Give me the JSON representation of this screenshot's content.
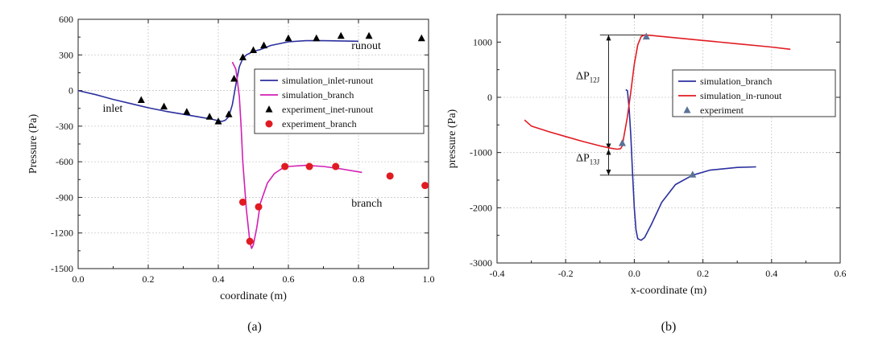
{
  "chart_data": [
    {
      "type": "line",
      "panel_label": "(a)",
      "xlabel": "coordinate (m)",
      "ylabel": "Pressure (Pa)",
      "xlim": [
        0.0,
        1.0
      ],
      "ylim": [
        -1500,
        600
      ],
      "x_ticks": [
        0.0,
        0.2,
        0.4,
        0.6,
        0.8,
        1.0
      ],
      "x_tick_labels": [
        "0.0",
        "0.2",
        "0.4",
        "0.6",
        "0.8",
        "1.0"
      ],
      "y_ticks": [
        -1500,
        -1200,
        -900,
        -600,
        -300,
        0,
        300,
        600
      ],
      "y_tick_labels": [
        "-1500",
        "-1200",
        "-900",
        "-600",
        "-300",
        "0",
        "300",
        "600"
      ],
      "grid": true,
      "legend_position": "right",
      "annotations": [
        {
          "text": "inlet",
          "x": 0.07,
          "y": -180
        },
        {
          "text": "runout",
          "x": 0.78,
          "y": 350
        },
        {
          "text": "branch",
          "x": 0.78,
          "y": -980
        }
      ],
      "series": [
        {
          "name": "simulation_inlet-runout",
          "kind": "line",
          "color": "#2b2f9e",
          "x": [
            0.0,
            0.05,
            0.1,
            0.15,
            0.2,
            0.25,
            0.3,
            0.35,
            0.38,
            0.4,
            0.41,
            0.42,
            0.43,
            0.44,
            0.45,
            0.46,
            0.47,
            0.48,
            0.5,
            0.52,
            0.55,
            0.6,
            0.65,
            0.7,
            0.75,
            0.8
          ],
          "y": [
            0,
            -35,
            -75,
            -110,
            -145,
            -175,
            -200,
            -225,
            -240,
            -255,
            -260,
            -250,
            -220,
            -120,
            50,
            200,
            270,
            300,
            330,
            345,
            380,
            410,
            420,
            420,
            418,
            415
          ]
        },
        {
          "name": "simulation_branch",
          "kind": "line",
          "color": "#d21fb4",
          "x": [
            0.44,
            0.45,
            0.46,
            0.465,
            0.47,
            0.48,
            0.49,
            0.495,
            0.5,
            0.51,
            0.52,
            0.54,
            0.56,
            0.58,
            0.6,
            0.65,
            0.7,
            0.75,
            0.81
          ],
          "y": [
            240,
            180,
            -50,
            -300,
            -600,
            -1000,
            -1270,
            -1330,
            -1300,
            -1150,
            -950,
            -780,
            -700,
            -660,
            -640,
            -630,
            -640,
            -660,
            -690
          ]
        },
        {
          "name": "experiment_inet-runout",
          "kind": "scatter",
          "marker": "triangle",
          "color": "#000000",
          "x": [
            0.18,
            0.245,
            0.31,
            0.375,
            0.4,
            0.43,
            0.445,
            0.47,
            0.5,
            0.53,
            0.6,
            0.68,
            0.75,
            0.83,
            0.98
          ],
          "y": [
            -80,
            -135,
            -180,
            -220,
            -260,
            -200,
            100,
            280,
            340,
            380,
            440,
            440,
            460,
            460,
            440
          ]
        },
        {
          "name": "experiment_branch",
          "kind": "scatter",
          "marker": "circle",
          "color": "#e11b22",
          "x": [
            0.47,
            0.49,
            0.515,
            0.59,
            0.66,
            0.735,
            0.89,
            0.99
          ],
          "y": [
            -940,
            -1270,
            -980,
            -640,
            -640,
            -640,
            -720,
            -800
          ]
        }
      ]
    },
    {
      "type": "line",
      "panel_label": "(b)",
      "xlabel": "x-coordinate (m)",
      "ylabel": "pressure (Pa)",
      "xlim": [
        -0.4,
        0.6
      ],
      "ylim": [
        -3000,
        1500
      ],
      "x_ticks": [
        -0.4,
        -0.2,
        0.0,
        0.2,
        0.4,
        0.6
      ],
      "x_tick_labels": [
        "-0.4",
        "-0.2",
        "0.0",
        "0.2",
        "0.4",
        "0.6"
      ],
      "y_ticks": [
        -3000,
        -2000,
        -1000,
        0,
        1000
      ],
      "y_tick_labels": [
        "-3000",
        "-2000",
        "-1000",
        "0",
        "1000"
      ],
      "grid": true,
      "legend_position": "top-right",
      "annotations": [
        {
          "text": "ΔP",
          "sub": "12J",
          "x": -0.17,
          "y": 330
        },
        {
          "text": "ΔP",
          "sub": "13J",
          "x": -0.17,
          "y": -1160
        }
      ],
      "dimension_lines": [
        {
          "x1": -0.1,
          "y1": 1130,
          "x2": 0.035,
          "y2": 1130
        },
        {
          "x1": -0.1,
          "y1": -1410,
          "x2": 0.17,
          "y2": -1410
        },
        {
          "x": -0.075,
          "y1": 1130,
          "y2": -940
        },
        {
          "x": -0.075,
          "y1": -940,
          "y2": -1410
        }
      ],
      "series": [
        {
          "name": "simulation_branch",
          "kind": "line",
          "color": "#2b2f9e",
          "x": [
            -0.025,
            -0.02,
            -0.015,
            -0.01,
            -0.005,
            0.0,
            0.005,
            0.01,
            0.02,
            0.03,
            0.05,
            0.08,
            0.12,
            0.17,
            0.22,
            0.3,
            0.355
          ],
          "y": [
            140,
            120,
            -200,
            -700,
            -1400,
            -2000,
            -2400,
            -2560,
            -2590,
            -2540,
            -2300,
            -1900,
            -1580,
            -1410,
            -1320,
            -1270,
            -1260
          ]
        },
        {
          "name": "simulation_in-runout",
          "kind": "line",
          "color": "#e11b22",
          "x": [
            -0.32,
            -0.3,
            -0.25,
            -0.2,
            -0.15,
            -0.1,
            -0.07,
            -0.05,
            -0.04,
            -0.035,
            -0.03,
            -0.02,
            -0.01,
            0.0,
            0.01,
            0.02,
            0.03,
            0.05,
            0.1,
            0.2,
            0.3,
            0.4,
            0.455
          ],
          "y": [
            -410,
            -520,
            -620,
            -710,
            -800,
            -880,
            -920,
            -940,
            -930,
            -880,
            -700,
            -350,
            100,
            600,
            950,
            1100,
            1130,
            1120,
            1090,
            1030,
            970,
            910,
            870
          ]
        },
        {
          "name": "experiment",
          "kind": "scatter",
          "marker": "triangle",
          "color": "#5a7296",
          "x": [
            -0.035,
            0.035,
            0.17
          ],
          "y": [
            -830,
            1100,
            -1400
          ]
        }
      ]
    }
  ]
}
